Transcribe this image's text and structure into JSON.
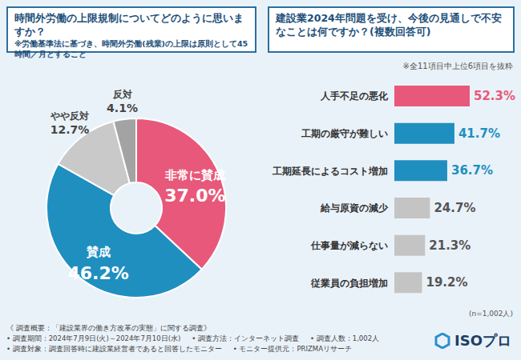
{
  "chart_data": [
    {
      "type": "pie",
      "title": "時間外労働の上限規制についてどのように思いますか？",
      "subtitle": "※労働基準法に基づき、時間外労働(残業)の上限は原則として45時間／月とすること",
      "categories": [
        "非常に賛成",
        "賛成",
        "やや反対",
        "反対"
      ],
      "values": [
        37.0,
        46.2,
        12.7,
        4.1
      ],
      "value_labels": [
        "37.0%",
        "46.2%",
        "12.7%",
        "4.1%"
      ],
      "colors": [
        "#e8587a",
        "#1f8fc0",
        "#c9c9c9",
        "#a3a3a3"
      ],
      "data_labels": true
    },
    {
      "type": "bar",
      "orientation": "horizontal",
      "title": "建設業2024年問題を受け、今後の見通しで不安なことは何ですか？(複数回答可)",
      "subtitle": "※全11項目中上位6項目を抜粋",
      "annotations": [
        "(n=1,002人)"
      ],
      "categories": [
        "人手不足の悪化",
        "工期の厳守が難しい",
        "工期延長によるコスト増加",
        "給与原資の減少",
        "仕事量が減らない",
        "従業員の負担増加"
      ],
      "values": [
        52.3,
        41.7,
        36.7,
        24.7,
        21.3,
        19.2
      ],
      "value_labels": [
        "52.3%",
        "41.7%",
        "36.7%",
        "24.7%",
        "21.3%",
        "19.2%"
      ],
      "colors": [
        "#e8587a",
        "#1f8fc0",
        "#1f8fc0",
        "#c4c4c4",
        "#c4c4c4",
        "#c4c4c4"
      ],
      "data_labels": true,
      "tick_labels": false
    }
  ],
  "footer": {
    "lines": [
      [
        "《 調査概要：「建設業界の働き方改革の実態」に関する調査》"
      ],
      [
        "• 調査期間：2024年7月9日(火)～2024年7月10日(水)",
        "• 調査方法：インターネット調査",
        "• 調査人数：1,002人"
      ],
      [
        "• 調査対象：調査回答時に建設業経営者であると回答したモニター",
        "• モニター提供元：PRIZMAリサーチ"
      ]
    ],
    "logo": "ISOプロ"
  }
}
